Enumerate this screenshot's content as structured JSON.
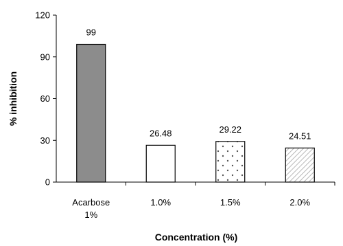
{
  "chart_data": {
    "type": "bar",
    "categories": [
      [
        "Acarbose",
        "1%"
      ],
      [
        "1.0%"
      ],
      [
        "1.5%"
      ],
      [
        "2.0%"
      ]
    ],
    "values": [
      99,
      26.48,
      29.22,
      24.51
    ],
    "data_labels": [
      "99",
      "26.48",
      "29.22",
      "24.51"
    ],
    "bar_fills": [
      "solid-gray",
      "white",
      "dotted",
      "diagonal-hatch"
    ],
    "xlabel": "Concentration (%)",
    "ylabel": "% inhibition",
    "ylim": [
      0,
      120
    ],
    "yticks": [
      0,
      30,
      60,
      90,
      120
    ],
    "grid": false,
    "legend": "none",
    "colors": {
      "solid_gray": "#8c8c8c",
      "outline": "#000000",
      "hatch": "#b8b8b8",
      "dots": "#555555"
    }
  }
}
